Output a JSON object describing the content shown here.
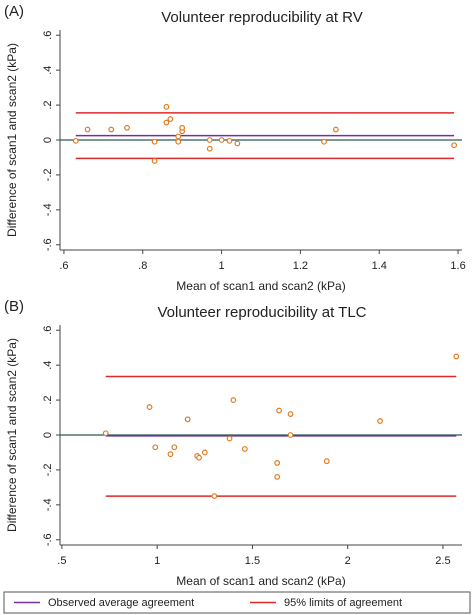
{
  "chart_data": [
    {
      "type": "scatter",
      "label": "(A)",
      "title": "Volunteer reproducibility at RV",
      "xlabel": "Mean of scan1 and scan2 (kPa)",
      "ylabel": "Difference of scan1 and scan2 (kPa)",
      "x": [
        0.63,
        0.66,
        0.72,
        0.76,
        0.83,
        0.83,
        0.86,
        0.86,
        0.87,
        0.89,
        0.89,
        0.9,
        0.9,
        0.97,
        0.97,
        1.0,
        1.02,
        1.04,
        1.26,
        1.29,
        1.59
      ],
      "values": [
        -0.005,
        0.06,
        0.06,
        0.07,
        -0.01,
        -0.12,
        0.19,
        0.1,
        0.12,
        -0.01,
        0.02,
        0.05,
        0.07,
        -0.05,
        0.0,
        0.0,
        -0.005,
        -0.02,
        -0.01,
        0.06,
        -0.03
      ],
      "color": "#e07b20",
      "mean": 0.025,
      "limits": [
        -0.105,
        0.155
      ],
      "xlim": [
        0.59,
        1.61
      ],
      "ylim": [
        -0.63,
        0.63
      ],
      "xticks": [
        {
          "value": 0.6,
          "label": ".6"
        },
        {
          "value": 0.8,
          "label": ".8"
        },
        1,
        1.2,
        1.4,
        1.6
      ],
      "yticks": [
        {
          "value": -0.6,
          "label": "-.6"
        },
        {
          "value": -0.4,
          "label": "-.4"
        },
        {
          "value": -0.2,
          "label": "-.2"
        },
        0,
        {
          "value": 0.2,
          "label": ".2"
        },
        {
          "value": 0.4,
          "label": ".4"
        },
        {
          "value": 0.6,
          "label": ".6"
        }
      ]
    },
    {
      "type": "scatter",
      "label": "(B)",
      "title": "Volunteer reproducibility at TLC",
      "xlabel": "Mean of scan1 and scan2 (kPa)",
      "ylabel": "Difference of scan1 and scan2 (kPa)",
      "x": [
        0.73,
        0.96,
        0.99,
        1.07,
        1.09,
        1.16,
        1.21,
        1.22,
        1.25,
        1.3,
        1.38,
        1.4,
        1.46,
        1.63,
        1.63,
        1.64,
        1.7,
        1.7,
        1.89,
        2.17,
        2.57
      ],
      "values": [
        0.01,
        0.16,
        -0.07,
        -0.11,
        -0.07,
        0.09,
        -0.12,
        -0.13,
        -0.1,
        -0.35,
        -0.02,
        0.2,
        -0.08,
        -0.16,
        -0.24,
        0.14,
        0.12,
        0.0,
        -0.15,
        0.08,
        0.45
      ],
      "color": "#e07b20",
      "mean": -0.005,
      "limits": [
        -0.35,
        0.335
      ],
      "xlim": [
        0.49,
        2.6
      ],
      "ylim": [
        -0.63,
        0.63
      ],
      "xticks": [
        {
          "value": 0.5,
          "label": ".5"
        },
        1,
        1.5,
        2,
        2.5
      ],
      "yticks": [
        {
          "value": -0.6,
          "label": "-.6"
        },
        {
          "value": -0.4,
          "label": "-.4"
        },
        {
          "value": -0.2,
          "label": "-.2"
        },
        0,
        {
          "value": 0.2,
          "label": ".2"
        },
        {
          "value": 0.4,
          "label": ".4"
        },
        {
          "value": 0.6,
          "label": ".6"
        }
      ]
    }
  ],
  "legend": [
    {
      "name": "Observed average agreement",
      "color": "#7030a0"
    },
    {
      "name": "95% limits of agreement",
      "color": "#e02828"
    }
  ]
}
